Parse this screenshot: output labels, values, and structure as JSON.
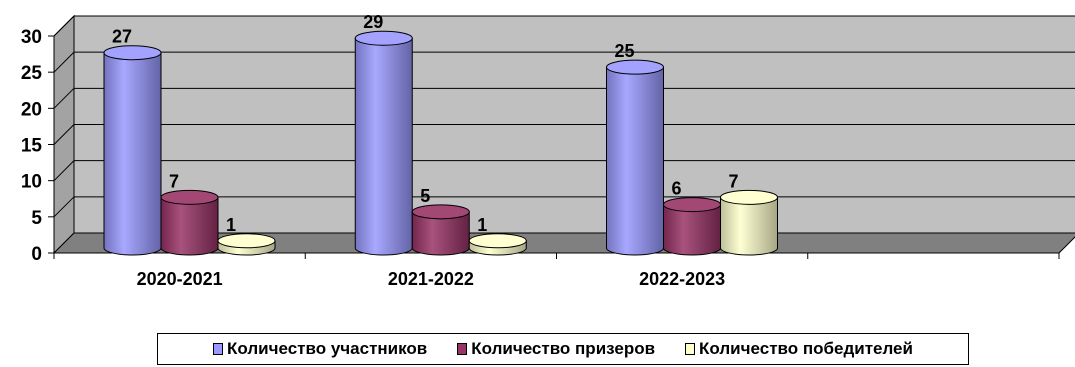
{
  "chart_data": {
    "type": "bar",
    "categories": [
      "2020-2021",
      "2021-2022",
      "2022-2023"
    ],
    "series": [
      {
        "name": "Количество участников",
        "values": [
          27,
          29,
          25
        ],
        "color": "#9999FF"
      },
      {
        "name": "Количество призеров",
        "values": [
          7,
          5,
          6
        ],
        "color": "#993366"
      },
      {
        "name": "Количество победителей",
        "values": [
          1,
          1,
          7
        ],
        "color": "#FFFFCC"
      }
    ],
    "ylim": [
      0,
      30
    ],
    "yticks": [
      0,
      5,
      10,
      15,
      20,
      25,
      30
    ],
    "grid": true,
    "legend_position": "bottom",
    "style": "3d-cylinder",
    "wall_color": "#C0C0C0",
    "floor_color": "#808080"
  }
}
